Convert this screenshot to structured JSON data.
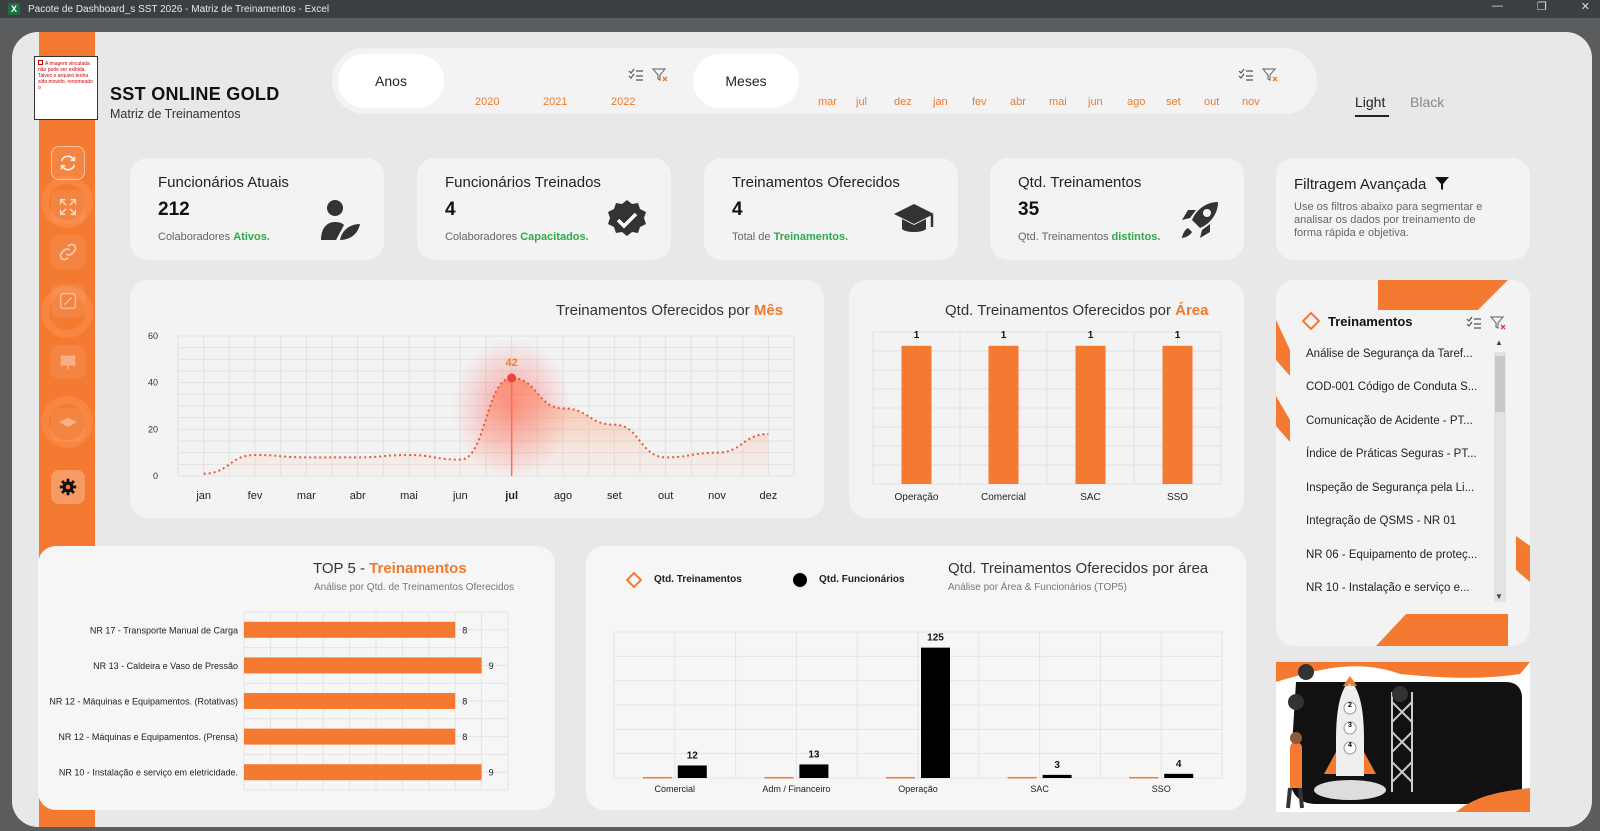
{
  "window": {
    "title": "Pacote de Dashboard_s SST 2026 - Matriz de Treinamentos - Excel",
    "app_icon": "X",
    "controls": [
      "—",
      "❐",
      "✕"
    ]
  },
  "brand": {
    "title": "SST ONLINE GOLD",
    "subtitle": "Matriz de Treinamentos",
    "logo_placeholder": "A imagem vinculada não pode ser exibida. Talvez o arquivo tenha sido movido, renomeado o"
  },
  "filters": {
    "years_label": "Anos",
    "years": [
      "2020",
      "2021",
      "2022"
    ],
    "months_label": "Meses",
    "months": [
      "mar",
      "jul",
      "dez",
      "jan",
      "fev",
      "abr",
      "mai",
      "jun",
      "ago",
      "set",
      "out",
      "nov"
    ]
  },
  "theme": {
    "light": "Light",
    "black": "Black"
  },
  "kpis": [
    {
      "title": "Funcionários Atuais",
      "value": "212",
      "sub_prefix": "Colaboradores ",
      "sub_highlight": "Ativos.",
      "icon": "user-leaf-icon"
    },
    {
      "title": "Funcionários Treinados",
      "value": "4",
      "sub_prefix": "Colaboradores ",
      "sub_highlight": "Capacitados.",
      "icon": "check-badge-icon"
    },
    {
      "title": "Treinamentos Oferecidos",
      "value": "4",
      "sub_prefix": "Total de ",
      "sub_highlight": "Treinamentos.",
      "icon": "graduation-cap-icon"
    },
    {
      "title": "Qtd. Treinamentos",
      "value": "35",
      "sub_prefix": "Qtd. Treinamentos ",
      "sub_highlight": "distintos.",
      "icon": "rocket-icon"
    }
  ],
  "advanced_filter": {
    "title": "Filtragem Avançada",
    "text": "Use os filtros abaixo para segmentar e analisar os dados por treinamento de forma rápida e objetiva."
  },
  "colors": {
    "accent": "#f47a32",
    "green": "#2eaa4a",
    "black": "#000000"
  },
  "chart_monthly": {
    "title_prefix": "Treinamentos Oferecidos por ",
    "title_highlight": "Mês"
  },
  "chart_area": {
    "title_prefix": "Qtd. Treinamentos Oferecidos por ",
    "title_highlight": "Área"
  },
  "chart_top5": {
    "title_prefix": "TOP 5 - ",
    "title_highlight": "Treinamentos",
    "subtitle": "Análise por Qtd. de Treinamentos Oferecidos"
  },
  "chart_combo": {
    "title": "Qtd. Treinamentos Oferecidos por área",
    "subtitle": "Análise por Área & Funcionários (TOP5)",
    "legend_a": "Qtd. Treinamentos",
    "legend_b": "Qtd. Funcionários"
  },
  "chart_data": [
    {
      "type": "area",
      "categories": [
        "jan",
        "fev",
        "mar",
        "abr",
        "mai",
        "jun",
        "jul",
        "ago",
        "set",
        "out",
        "nov",
        "dez"
      ],
      "values": [
        1,
        9,
        8,
        8,
        9,
        7,
        42,
        29,
        22,
        8,
        10,
        18
      ],
      "highlight": {
        "category": "jul",
        "value": 42
      },
      "ylim": [
        0,
        60
      ],
      "yticks": [
        0,
        20,
        40,
        60
      ],
      "grid": true
    },
    {
      "type": "bar",
      "categories": [
        "Operação",
        "Comercial",
        "SAC",
        "SSO"
      ],
      "values": [
        1,
        1,
        1,
        1
      ],
      "ylim": [
        0,
        1.1
      ],
      "grid": true
    },
    {
      "type": "bar",
      "orientation": "horizontal",
      "categories": [
        "NR 17 - Transporte Manual de Carga",
        "NR 13 - Caldeira e Vaso de Pressão",
        "NR 12 - Máquinas e Equipamentos. (Rotativas)",
        "NR 12 - Máquinas e Equipamentos. (Prensa)",
        "NR 10 - Instalação e serviço em eletricidade."
      ],
      "values": [
        8,
        9,
        8,
        8,
        9
      ],
      "xlim": [
        0,
        10
      ],
      "grid": true
    },
    {
      "type": "bar",
      "categories": [
        "Comercial",
        "Adm / Financeiro",
        "Operação",
        "SAC",
        "SSO"
      ],
      "series": [
        {
          "name": "Qtd. Treinamentos",
          "values": [
            1,
            1,
            1,
            1,
            1
          ]
        },
        {
          "name": "Qtd. Funcionários",
          "values": [
            12,
            13,
            125,
            3,
            4
          ]
        }
      ],
      "ylim": [
        0,
        140
      ],
      "legend": "top-left",
      "grid": true
    }
  ],
  "slicer": {
    "title": "Treinamentos",
    "items": [
      "Análise de Segurança da Taref...",
      "COD-001 Código de Conduta S...",
      "Comunicação de Acidente - PT...",
      "Índice de Práticas Seguras - PT...",
      "Inspeção de Segurança pela Li...",
      "Integração  de QSMS -  NR 01",
      "NR 06 - Equipamento de proteç...",
      "NR 10 - Instalação e serviço e..."
    ]
  },
  "illustration": {
    "rocket_numbers": [
      "1",
      "2",
      "3",
      "4"
    ]
  }
}
